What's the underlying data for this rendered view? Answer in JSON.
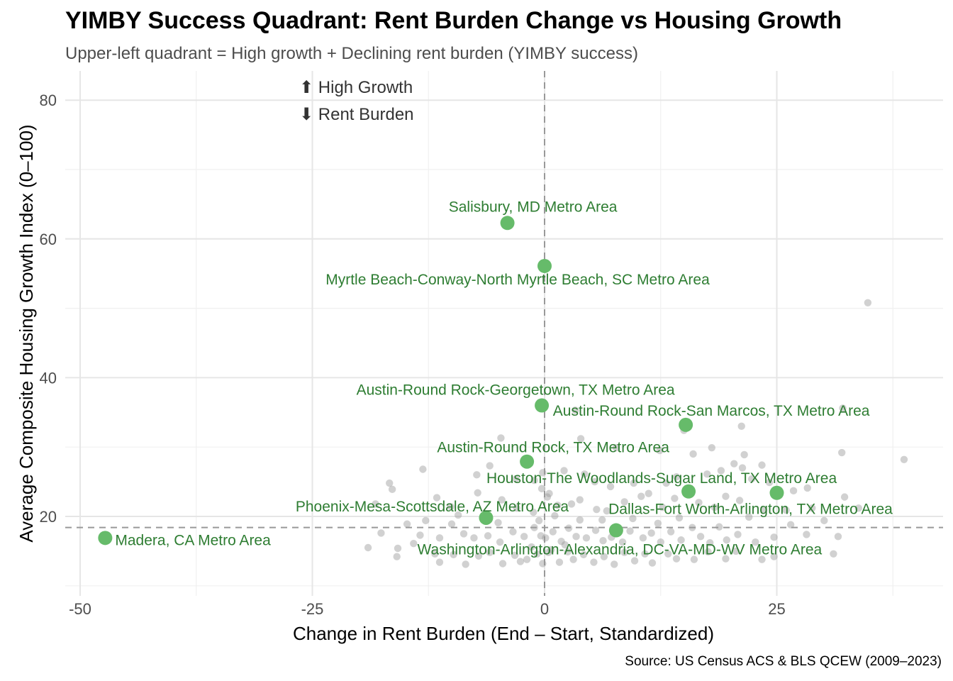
{
  "chart_data": {
    "type": "scatter",
    "title": "YIMBY Success Quadrant: Rent Burden Change vs Housing Growth",
    "subtitle": "Upper-left quadrant = High growth + Declining rent burden (YIMBY success)",
    "caption": "Source: US Census ACS & BLS QCEW (2009–2023)",
    "xlabel": "Change in Rent Burden (End – Start, Standardized)",
    "ylabel": "Average Composite Housing Growth Index (0–100)",
    "xlim": [
      -52,
      43
    ],
    "ylim": [
      10,
      84
    ],
    "x_ticks": [
      "-50",
      "-25",
      "0",
      "25"
    ],
    "x_tick_values": [
      -50,
      -25,
      0,
      25
    ],
    "y_ticks": [
      "20",
      "40",
      "60",
      "80"
    ],
    "y_tick_values": [
      20,
      40,
      60,
      80
    ],
    "grid": true,
    "reference_lines": {
      "x": 0,
      "y": 18.4
    },
    "annotations": [
      "⬆ High Growth",
      "⬇ Rent Burden"
    ],
    "colors": {
      "highlight": "#66bb6a",
      "highlight_label": "#2e7d32",
      "background": "#999999",
      "refline": "#999999"
    },
    "highlighted": [
      {
        "name": "Salisbury, MD Metro Area",
        "x": -4.0,
        "y": 62.3
      },
      {
        "name": "Myrtle Beach-Conway-North Myrtle Beach, SC Metro Area",
        "x": 0.0,
        "y": 56.1
      },
      {
        "name": "Austin-Round Rock-Georgetown, TX Metro Area",
        "x": -0.3,
        "y": 36.0
      },
      {
        "name": "Austin-Round Rock-San Marcos, TX Metro Area",
        "x": 15.2,
        "y": 33.2
      },
      {
        "name": "Austin-Round Rock, TX Metro Area",
        "x": -1.9,
        "y": 27.9
      },
      {
        "name": "Houston-The Woodlands-Sugar Land, TX Metro Area",
        "x": 15.5,
        "y": 23.6
      },
      {
        "name": "Dallas-Fort Worth-Arlington, TX Metro Area",
        "x": 25.0,
        "y": 23.4
      },
      {
        "name": "Phoenix-Mesa-Scottsdale, AZ Metro Area",
        "x": -6.3,
        "y": 19.8
      },
      {
        "name": "Washington-Arlington-Alexandria, DC-VA-MD-WV Metro Area",
        "x": 7.7,
        "y": 18.0
      },
      {
        "name": "Madera, CA Metro Area",
        "x": -47.3,
        "y": 16.9
      }
    ],
    "background_points": [
      [
        34.8,
        50.8
      ],
      [
        32.1,
        35.6
      ],
      [
        3.3,
        35.3
      ],
      [
        15.0,
        32.4
      ],
      [
        21.2,
        33.0
      ],
      [
        3.9,
        31.2
      ],
      [
        -4.7,
        31.3
      ],
      [
        7.7,
        29.9
      ],
      [
        12.4,
        29.5
      ],
      [
        16.0,
        29.0
      ],
      [
        18.0,
        29.9
      ],
      [
        21.5,
        28.9
      ],
      [
        23.4,
        27.4
      ],
      [
        32.0,
        29.2
      ],
      [
        38.7,
        28.2
      ],
      [
        -13.1,
        26.8
      ],
      [
        -16.7,
        24.8
      ],
      [
        -5.9,
        27.3
      ],
      [
        -7.3,
        26.0
      ],
      [
        -3.1,
        25.4
      ],
      [
        -1.1,
        25.2
      ],
      [
        -0.2,
        26.3
      ],
      [
        2.1,
        26.6
      ],
      [
        4.3,
        26.1
      ],
      [
        5.4,
        25.0
      ],
      [
        7.1,
        24.3
      ],
      [
        9.6,
        24.8
      ],
      [
        11.2,
        23.3
      ],
      [
        13.1,
        24.8
      ],
      [
        14.2,
        25.7
      ],
      [
        17.5,
        26.1
      ],
      [
        19.0,
        26.6
      ],
      [
        20.4,
        27.6
      ],
      [
        21.3,
        27.0
      ],
      [
        22.3,
        25.4
      ],
      [
        24.2,
        24.9
      ],
      [
        26.8,
        23.7
      ],
      [
        28.3,
        24.1
      ],
      [
        32.3,
        22.8
      ],
      [
        -18.2,
        21.8
      ],
      [
        -16.4,
        23.9
      ],
      [
        -11.6,
        22.7
      ],
      [
        -10.1,
        21.4
      ],
      [
        -7.2,
        23.4
      ],
      [
        -4.6,
        22.4
      ],
      [
        -3.0,
        21.2
      ],
      [
        -1.2,
        20.6
      ],
      [
        0.3,
        22.8
      ],
      [
        1.4,
        21.6
      ],
      [
        2.9,
        21.8
      ],
      [
        3.8,
        22.4
      ],
      [
        5.6,
        21.0
      ],
      [
        6.7,
        20.8
      ],
      [
        8.6,
        22.1
      ],
      [
        10.4,
        22.9
      ],
      [
        12.7,
        21.3
      ],
      [
        14.0,
        22.6
      ],
      [
        16.6,
        22.0
      ],
      [
        18.3,
        21.3
      ],
      [
        19.5,
        22.9
      ],
      [
        21.0,
        22.3
      ],
      [
        23.6,
        20.9
      ],
      [
        26.0,
        20.9
      ],
      [
        28.8,
        21.2
      ],
      [
        30.1,
        19.4
      ],
      [
        33.8,
        21.2
      ],
      [
        -17.6,
        17.6
      ],
      [
        -14.8,
        18.9
      ],
      [
        -13.4,
        17.3
      ],
      [
        -11.3,
        16.9
      ],
      [
        -10.0,
        18.9
      ],
      [
        -8.7,
        17.5
      ],
      [
        -7.6,
        16.9
      ],
      [
        -6.1,
        17.2
      ],
      [
        -4.8,
        16.3
      ],
      [
        -3.4,
        17.8
      ],
      [
        -2.2,
        17.1
      ],
      [
        -1.1,
        18.4
      ],
      [
        -0.4,
        17.2
      ],
      [
        0.1,
        16.9
      ],
      [
        0.9,
        17.8
      ],
      [
        1.8,
        16.4
      ],
      [
        2.6,
        18.3
      ],
      [
        3.4,
        17.1
      ],
      [
        4.5,
        16.9
      ],
      [
        5.5,
        18.0
      ],
      [
        6.3,
        16.5
      ],
      [
        7.2,
        17.0
      ],
      [
        8.4,
        16.3
      ],
      [
        9.2,
        17.9
      ],
      [
        10.6,
        16.9
      ],
      [
        11.5,
        17.6
      ],
      [
        12.5,
        16.3
      ],
      [
        13.6,
        17.8
      ],
      [
        14.7,
        16.6
      ],
      [
        15.9,
        18.4
      ],
      [
        16.8,
        17.1
      ],
      [
        17.8,
        16.2
      ],
      [
        19.6,
        16.6
      ],
      [
        20.8,
        17.4
      ],
      [
        22.7,
        16.3
      ],
      [
        24.7,
        17.0
      ],
      [
        26.5,
        18.8
      ],
      [
        28.2,
        17.4
      ],
      [
        31.6,
        17.1
      ],
      [
        -19.0,
        15.5
      ],
      [
        -15.8,
        15.4
      ],
      [
        -15.9,
        14.2
      ],
      [
        -14.1,
        16.1
      ],
      [
        -11.8,
        14.6
      ],
      [
        -11.3,
        13.4
      ],
      [
        -9.8,
        14.5
      ],
      [
        -8.5,
        13.1
      ],
      [
        -7.1,
        14.3
      ],
      [
        -5.9,
        14.8
      ],
      [
        -4.5,
        13.2
      ],
      [
        -3.2,
        14.4
      ],
      [
        -2.6,
        13.5
      ],
      [
        -1.9,
        13.8
      ],
      [
        -0.8,
        14.6
      ],
      [
        -0.2,
        13.2
      ],
      [
        0.4,
        14.8
      ],
      [
        1.6,
        13.4
      ],
      [
        2.5,
        14.9
      ],
      [
        3.1,
        13.8
      ],
      [
        4.2,
        14.5
      ],
      [
        5.3,
        13.4
      ],
      [
        6.4,
        14.2
      ],
      [
        7.5,
        13.1
      ],
      [
        8.6,
        14.8
      ],
      [
        9.7,
        13.6
      ],
      [
        10.8,
        14.6
      ],
      [
        11.6,
        13.3
      ],
      [
        13.3,
        14.6
      ],
      [
        14.2,
        13.9
      ],
      [
        16.1,
        13.8
      ],
      [
        17.6,
        14.9
      ],
      [
        19.5,
        13.9
      ],
      [
        20.6,
        15.0
      ],
      [
        23.4,
        13.8
      ],
      [
        24.7,
        14.2
      ],
      [
        31.1,
        14.6
      ],
      [
        -1.4,
        15.6
      ],
      [
        0.7,
        15.2
      ],
      [
        2.2,
        15.9
      ],
      [
        -0.6,
        19.4
      ],
      [
        1.1,
        20.1
      ],
      [
        0.5,
        23.3
      ],
      [
        -0.3,
        24.0
      ],
      [
        3.8,
        19.5
      ],
      [
        -5.0,
        19.1
      ],
      [
        6.2,
        19.5
      ],
      [
        9.5,
        19.7
      ],
      [
        12.2,
        19.0
      ],
      [
        14.5,
        19.8
      ],
      [
        18.8,
        18.5
      ],
      [
        22.0,
        19.9
      ],
      [
        -9.3,
        20.2
      ],
      [
        -12.8,
        19.4
      ]
    ]
  }
}
